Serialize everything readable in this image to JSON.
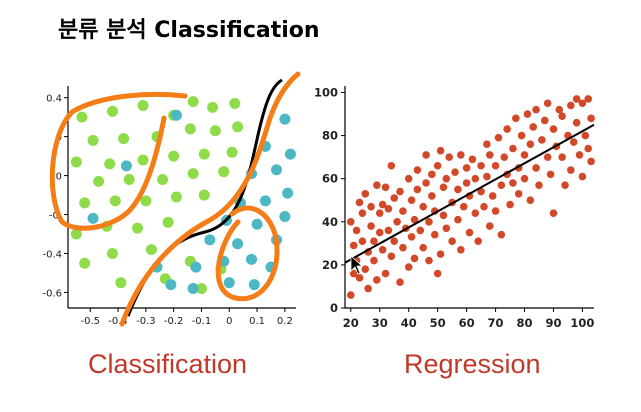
{
  "title": "분류 분석 Classification",
  "colors": {
    "green": "#8fdc4a",
    "teal": "#4cb8c4",
    "red": "#d2492a",
    "orange": "#f47d17",
    "label": "#c0392b"
  },
  "chart_data": [
    {
      "type": "scatter",
      "caption": "Classification",
      "x_ticks": [
        "-0.5",
        "-0.4",
        "-0.3",
        "-0.2",
        "-0.1",
        "0",
        "0.1",
        "0.2"
      ],
      "y_ticks": [
        "0.4",
        "0",
        "0",
        "-0.",
        "-0.4",
        "-0.6"
      ],
      "xlim": [
        -0.58,
        0.24
      ],
      "ylim": [
        -0.68,
        0.46
      ],
      "grid": false,
      "series": [
        {
          "color": "green",
          "points": [
            [
              -0.53,
              0.3
            ],
            [
              -0.42,
              0.33
            ],
            [
              -0.31,
              0.36
            ],
            [
              -0.2,
              0.31
            ],
            [
              -0.13,
              0.38
            ],
            [
              -0.06,
              0.35
            ],
            [
              0.02,
              0.37
            ],
            [
              -0.49,
              0.18
            ],
            [
              -0.38,
              0.19
            ],
            [
              -0.26,
              0.2
            ],
            [
              -0.14,
              0.24
            ],
            [
              -0.05,
              0.23
            ],
            [
              0.03,
              0.25
            ],
            [
              -0.55,
              0.07
            ],
            [
              -0.43,
              0.06
            ],
            [
              -0.31,
              0.08
            ],
            [
              -0.2,
              0.1
            ],
            [
              -0.09,
              0.11
            ],
            [
              0.01,
              0.12
            ],
            [
              -0.47,
              -0.03
            ],
            [
              -0.36,
              -0.02
            ],
            [
              -0.24,
              -0.02
            ],
            [
              -0.13,
              0.01
            ],
            [
              -0.02,
              0.02
            ],
            [
              -0.52,
              -0.14
            ],
            [
              -0.41,
              -0.13
            ],
            [
              -0.3,
              -0.13
            ],
            [
              -0.19,
              -0.11
            ],
            [
              -0.09,
              -0.1
            ],
            [
              -0.55,
              -0.3
            ],
            [
              -0.44,
              -0.26
            ],
            [
              -0.33,
              -0.27
            ],
            [
              -0.22,
              -0.24
            ],
            [
              -0.52,
              -0.45
            ],
            [
              -0.42,
              -0.4
            ],
            [
              -0.28,
              -0.38
            ],
            [
              -0.14,
              -0.44
            ],
            [
              -0.03,
              -0.48
            ],
            [
              -0.23,
              -0.53
            ],
            [
              -0.1,
              -0.58
            ],
            [
              -0.39,
              -0.55
            ]
          ]
        },
        {
          "color": "teal",
          "points": [
            [
              0.2,
              0.29
            ],
            [
              0.13,
              0.15
            ],
            [
              0.22,
              0.11
            ],
            [
              0.17,
              0.03
            ],
            [
              0.08,
              0.01
            ],
            [
              0.21,
              -0.09
            ],
            [
              0.13,
              -0.13
            ],
            [
              0.04,
              -0.14
            ],
            [
              0.2,
              -0.21
            ],
            [
              -0.01,
              -0.23
            ],
            [
              0.1,
              -0.25
            ],
            [
              0.17,
              -0.33
            ],
            [
              0.03,
              -0.35
            ],
            [
              -0.07,
              -0.33
            ],
            [
              0.08,
              -0.43
            ],
            [
              -0.02,
              -0.44
            ],
            [
              0.15,
              -0.47
            ],
            [
              -0.12,
              -0.47
            ],
            [
              0.0,
              -0.55
            ],
            [
              0.09,
              -0.56
            ],
            [
              -0.21,
              -0.56
            ],
            [
              -0.13,
              -0.58
            ],
            [
              -0.26,
              -0.47
            ],
            [
              -0.37,
              0.05
            ],
            [
              -0.49,
              -0.22
            ],
            [
              -0.19,
              0.31
            ]
          ]
        }
      ]
    },
    {
      "type": "scatter",
      "caption": "Regression",
      "x_ticks": [
        "20",
        "30",
        "40",
        "50",
        "60",
        "70",
        "80",
        "90",
        "100"
      ],
      "y_ticks": [
        "100",
        "80",
        "60",
        "40",
        "20",
        "0"
      ],
      "xlim": [
        18,
        104
      ],
      "ylim": [
        0,
        103
      ],
      "grid": false,
      "trend_line": [
        [
          18,
          21
        ],
        [
          104,
          85
        ]
      ],
      "series": [
        {
          "color": "red",
          "points": [
            [
              20,
              6
            ],
            [
              20,
              40
            ],
            [
              21,
              16
            ],
            [
              21,
              29
            ],
            [
              22,
              22
            ],
            [
              22,
              36
            ],
            [
              23,
              49
            ],
            [
              23,
              14
            ],
            [
              24,
              31
            ],
            [
              24,
              44
            ],
            [
              25,
              18
            ],
            [
              25,
              53
            ],
            [
              26,
              9
            ],
            [
              26,
              26
            ],
            [
              27,
              38
            ],
            [
              27,
              47
            ],
            [
              28,
              22
            ],
            [
              28,
              31
            ],
            [
              29,
              57
            ],
            [
              29,
              13
            ],
            [
              30,
              44
            ],
            [
              30,
              35
            ],
            [
              31,
              27
            ],
            [
              31,
              48
            ],
            [
              32,
              56
            ],
            [
              32,
              16
            ],
            [
              33,
              36
            ],
            [
              33,
              46
            ],
            [
              34,
              24
            ],
            [
              34,
              66
            ],
            [
              35,
              51
            ],
            [
              35,
              31
            ],
            [
              36,
              40
            ],
            [
              37,
              12
            ],
            [
              37,
              54
            ],
            [
              38,
              28
            ],
            [
              38,
              45
            ],
            [
              39,
              37
            ],
            [
              40,
              60
            ],
            [
              40,
              19
            ],
            [
              41,
              50
            ],
            [
              41,
              33
            ],
            [
              42,
              41
            ],
            [
              42,
              23
            ],
            [
              43,
              55
            ],
            [
              43,
              64
            ],
            [
              44,
              36
            ],
            [
              45,
              28
            ],
            [
              45,
              47
            ],
            [
              46,
              58
            ],
            [
              46,
              71
            ],
            [
              47,
              22
            ],
            [
              47,
              40
            ],
            [
              48,
              52
            ],
            [
              48,
              62
            ],
            [
              49,
              34
            ],
            [
              49,
              45
            ],
            [
              50,
              16
            ],
            [
              50,
              66
            ],
            [
              51,
              73
            ],
            [
              51,
              25
            ],
            [
              52,
              56
            ],
            [
              52,
              43
            ],
            [
              53,
              37
            ],
            [
              53,
              60
            ],
            [
              54,
              70
            ],
            [
              55,
              49
            ],
            [
              55,
              31
            ],
            [
              56,
              63
            ],
            [
              57,
              41
            ],
            [
              57,
              55
            ],
            [
              58,
              27
            ],
            [
              58,
              71
            ],
            [
              59,
              47
            ],
            [
              60,
              58
            ],
            [
              60,
              65
            ],
            [
              61,
              35
            ],
            [
              61,
              52
            ],
            [
              62,
              69
            ],
            [
              63,
              44
            ],
            [
              63,
              60
            ],
            [
              64,
              31
            ],
            [
              65,
              66
            ],
            [
              65,
              54
            ],
            [
              66,
              47
            ],
            [
              67,
              76
            ],
            [
              67,
              61
            ],
            [
              68,
              38
            ],
            [
              68,
              71
            ],
            [
              69,
              52
            ],
            [
              70,
              66
            ],
            [
              70,
              45
            ],
            [
              71,
              79
            ],
            [
              72,
              57
            ],
            [
              72,
              34
            ],
            [
              73,
              70
            ],
            [
              74,
              62
            ],
            [
              74,
              83
            ],
            [
              75,
              48
            ],
            [
              76,
              74
            ],
            [
              76,
              58
            ],
            [
              77,
              88
            ],
            [
              78,
              65
            ],
            [
              78,
              53
            ],
            [
              79,
              80
            ],
            [
              80,
              71
            ],
            [
              80,
              60
            ],
            [
              81,
              90
            ],
            [
              82,
              50
            ],
            [
              82,
              76
            ],
            [
              83,
              84
            ],
            [
              84,
              65
            ],
            [
              84,
              92
            ],
            [
              85,
              57
            ],
            [
              86,
              78
            ],
            [
              87,
              87
            ],
            [
              88,
              70
            ],
            [
              88,
              95
            ],
            [
              89,
              62
            ],
            [
              90,
              83
            ],
            [
              90,
              44
            ],
            [
              91,
              75
            ],
            [
              92,
              92
            ],
            [
              93,
              89
            ],
            [
              93,
              70
            ],
            [
              94,
              57
            ],
            [
              95,
              80
            ],
            [
              96,
              94
            ],
            [
              96,
              64
            ],
            [
              97,
              77
            ],
            [
              98,
              97
            ],
            [
              98,
              86
            ],
            [
              99,
              71
            ],
            [
              100,
              95
            ],
            [
              100,
              61
            ],
            [
              101,
              80
            ],
            [
              102,
              74
            ],
            [
              102,
              97
            ],
            [
              103,
              88
            ],
            [
              103,
              68
            ]
          ]
        }
      ]
    }
  ]
}
